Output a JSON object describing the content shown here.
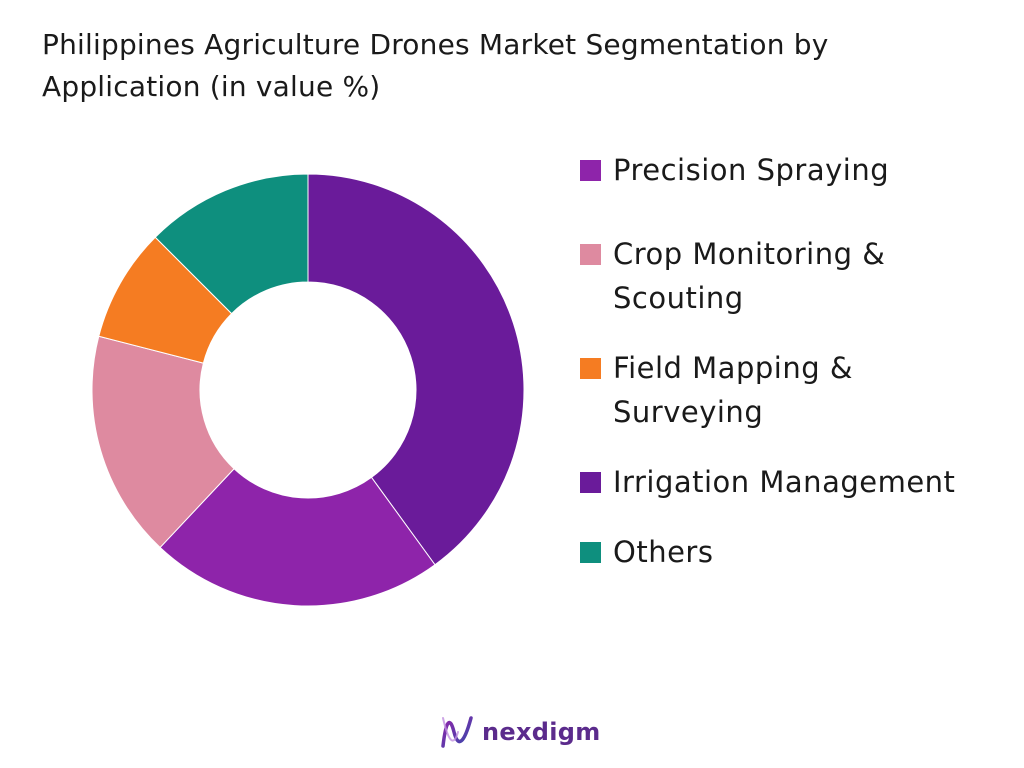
{
  "chart_data": {
    "type": "pie",
    "title": "Philippines Agriculture Drones Market Segmentation by Application (in value %)",
    "categories": [
      "Precision Spraying",
      "Crop Monitoring & Scouting",
      "Field Mapping & Surveying",
      "Irrigation Management",
      "Others"
    ],
    "values": [
      40,
      22,
      17,
      8.5,
      12.5
    ],
    "colors": [
      "#6a1b9a",
      "#8e24aa",
      "#de8aa0",
      "#f57c22",
      "#0e8f7e"
    ],
    "legend_colors": [
      "#8e24aa",
      "#de8aa0",
      "#f57c22",
      "#6a1b9a",
      "#0e8f7e"
    ],
    "legend_position": "right",
    "style": "donut"
  },
  "legend": {
    "items": [
      {
        "label": "Precision Spraying",
        "color": "#8e24aa"
      },
      {
        "label": "Crop Monitoring & Scouting",
        "color": "#de8aa0"
      },
      {
        "label": "Field Mapping & Surveying",
        "color": "#f57c22"
      },
      {
        "label": "Irrigation Management",
        "color": "#6a1b9a"
      },
      {
        "label": "Others",
        "color": "#0e8f7e"
      }
    ]
  },
  "brand": {
    "name": "nexdigm",
    "icon": "nexdigm-logo-icon",
    "color": "#5b2b8c"
  }
}
